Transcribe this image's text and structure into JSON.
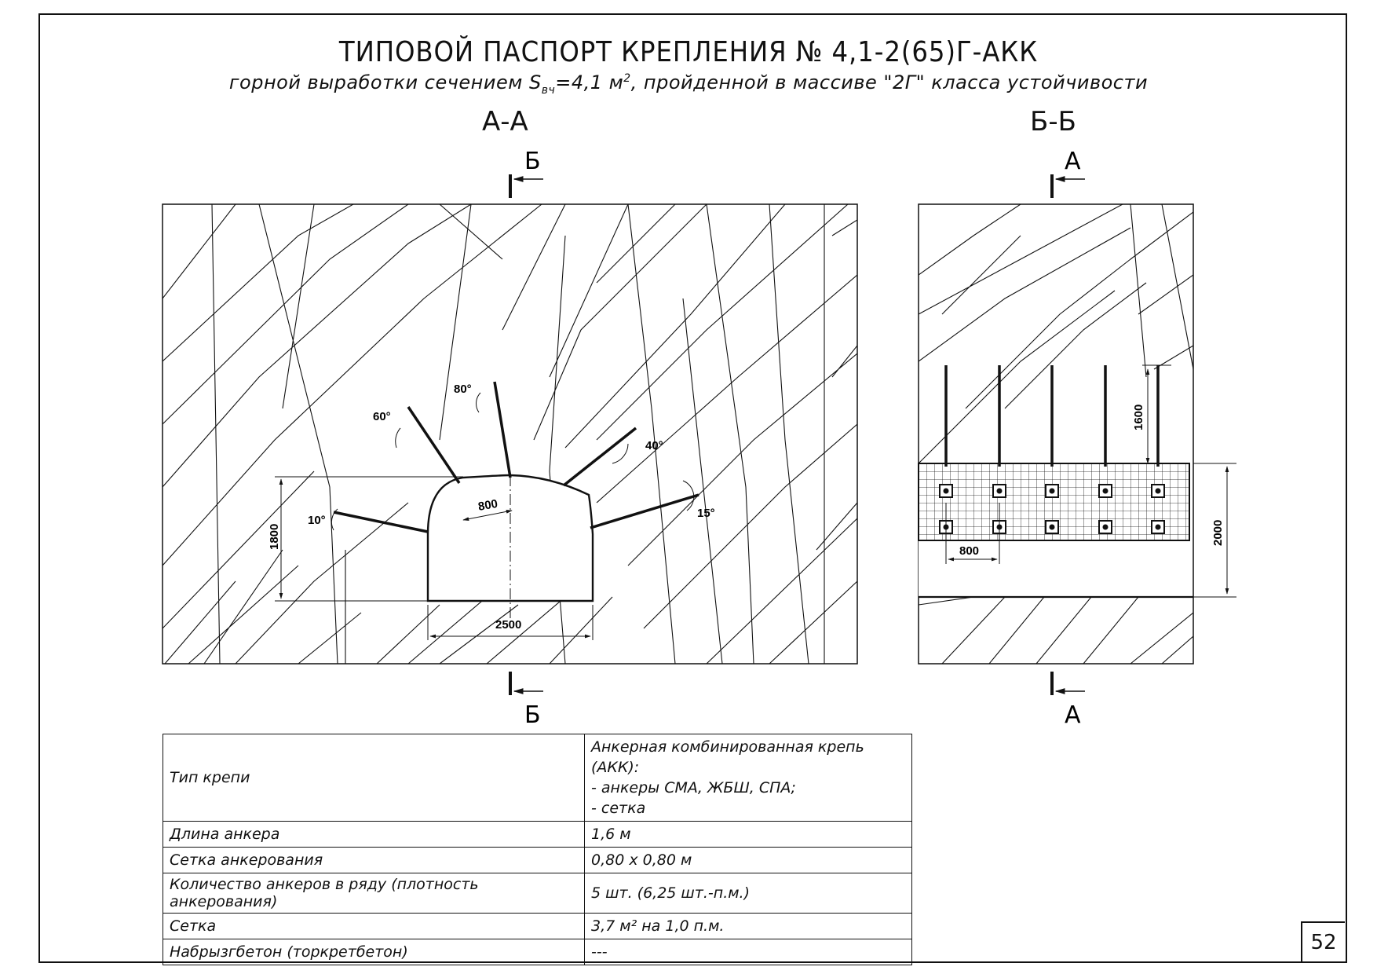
{
  "title": "ТИПОВОЙ ПАСПОРТ КРЕПЛЕНИЯ № 4,1-2(65)Г-АКК",
  "subtitle": {
    "pre": "горной выработки сечением S",
    "sub": "вч",
    "mid": "=4,1 м",
    "sup": "2",
    "post": ", пройденной в массиве \"2Г\" класса устойчивости"
  },
  "section_aa": {
    "label": "А-А",
    "cut_top": "Б",
    "cut_bottom": "Б",
    "dims": {
      "width": "2500",
      "height": "1800",
      "spacing": "800"
    },
    "angles": [
      "60°",
      "80°",
      "40°",
      "10°",
      "15°"
    ]
  },
  "section_bb": {
    "label": "Б-Б",
    "cut_top": "А",
    "cut_bottom": "А",
    "dims": {
      "anchor_length": "1600",
      "height": "2000",
      "spacing": "800"
    }
  },
  "table": {
    "rows": [
      {
        "key": "Тип крепи",
        "value_lines": [
          "Анкерная комбинированная крепь (АКК):",
          "- анкеры СМА, ЖБШ, СПА;",
          "- сетка"
        ]
      },
      {
        "key": "Длина анкера",
        "value": "1,6 м"
      },
      {
        "key": "Сетка анкерования",
        "value": "0,80 х 0,80 м"
      },
      {
        "key": "Количество анкеров в ряду (плотность анкерования)",
        "value": "5 шт. (6,25 шт.-п.м.)"
      },
      {
        "key": "Сетка",
        "value": "3,7 м² на 1,0 п.м."
      },
      {
        "key": "Набрызгбетон (торкретбетон)",
        "value": "---"
      }
    ]
  },
  "page_number": "52"
}
